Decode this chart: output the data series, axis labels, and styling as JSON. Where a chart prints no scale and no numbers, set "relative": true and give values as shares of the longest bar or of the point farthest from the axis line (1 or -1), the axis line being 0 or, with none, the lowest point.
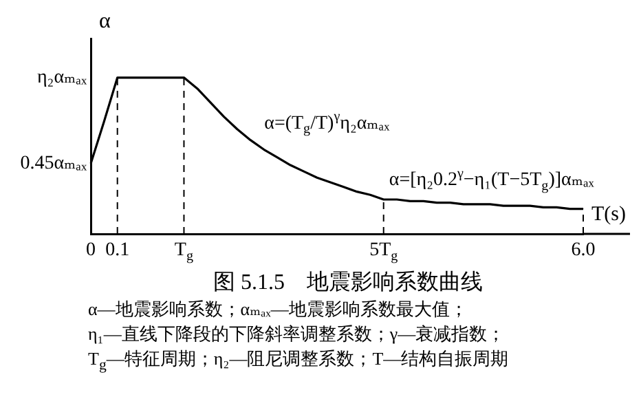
{
  "chart_data": {
    "type": "line",
    "title": "图 5.1.5　地震影响系数曲线",
    "xlabel": "T(s)",
    "ylabel": "α",
    "relative": true,
    "categories": [
      "0",
      null,
      "0.1",
      null,
      null,
      null,
      null,
      "T$_{g}$",
      null,
      null,
      null,
      null,
      null,
      null,
      null,
      null,
      null,
      null,
      null,
      null,
      null,
      null,
      "5T$_{g}$",
      null,
      null,
      null,
      null,
      null,
      null,
      null,
      null,
      null,
      null,
      null,
      null,
      null,
      null,
      "6.0"
    ],
    "series": [
      {
        "color": "#000000",
        "values": [
          0.45,
          0.72,
          1,
          1,
          1,
          1,
          1,
          1,
          0.93,
          0.84,
          0.75,
          0.67,
          0.6,
          0.54,
          0.49,
          0.44,
          0.4,
          0.36,
          0.33,
          0.3,
          0.27,
          0.25,
          0.22,
          0.22,
          0.21,
          0.21,
          0.2,
          0.2,
          0.19,
          0.19,
          0.19,
          0.18,
          0.18,
          0.18,
          0.17,
          0.17,
          0.16,
          0.16
        ]
      }
    ],
    "ref_lines": [
      {
        "axis": "x",
        "value": "0.1",
        "line_style": "dashed"
      },
      {
        "axis": "x",
        "value": "T$_{g}$",
        "line_style": "dashed"
      },
      {
        "axis": "x",
        "value": "5T$_{g}$",
        "line_style": "dashed"
      },
      {
        "axis": "x",
        "value": "6.0",
        "line_style": "dashed"
      }
    ],
    "annotations": [
      "η₂αₘₐₓ",
      {
        "text": "0.45αₘₐₓ",
        "x": "0",
        "y": 0.45
      },
      "α=(T$_{g}$/T)$^{γ}$η₂αₘₐₓ",
      {
        "text": "α=[η₂0.2$^{γ}$−η₁(T−5T$_{g}$)]αₘₐₓ",
        "x": "5T$_{g}$",
        "y": 0.22
      },
      "α—地震影响系数；αₘₐₓ—地震影响系数最大值；",
      "η₁—直线下降段的下降斜率调整系数；γ—衰减指数；",
      "T$_{g}$—特征周期；η₂—阻尼调整系数；T—结构自振周期"
    ],
    "legend": false,
    "grid": false,
    "marker": "none",
    "line_style": "solid"
  }
}
